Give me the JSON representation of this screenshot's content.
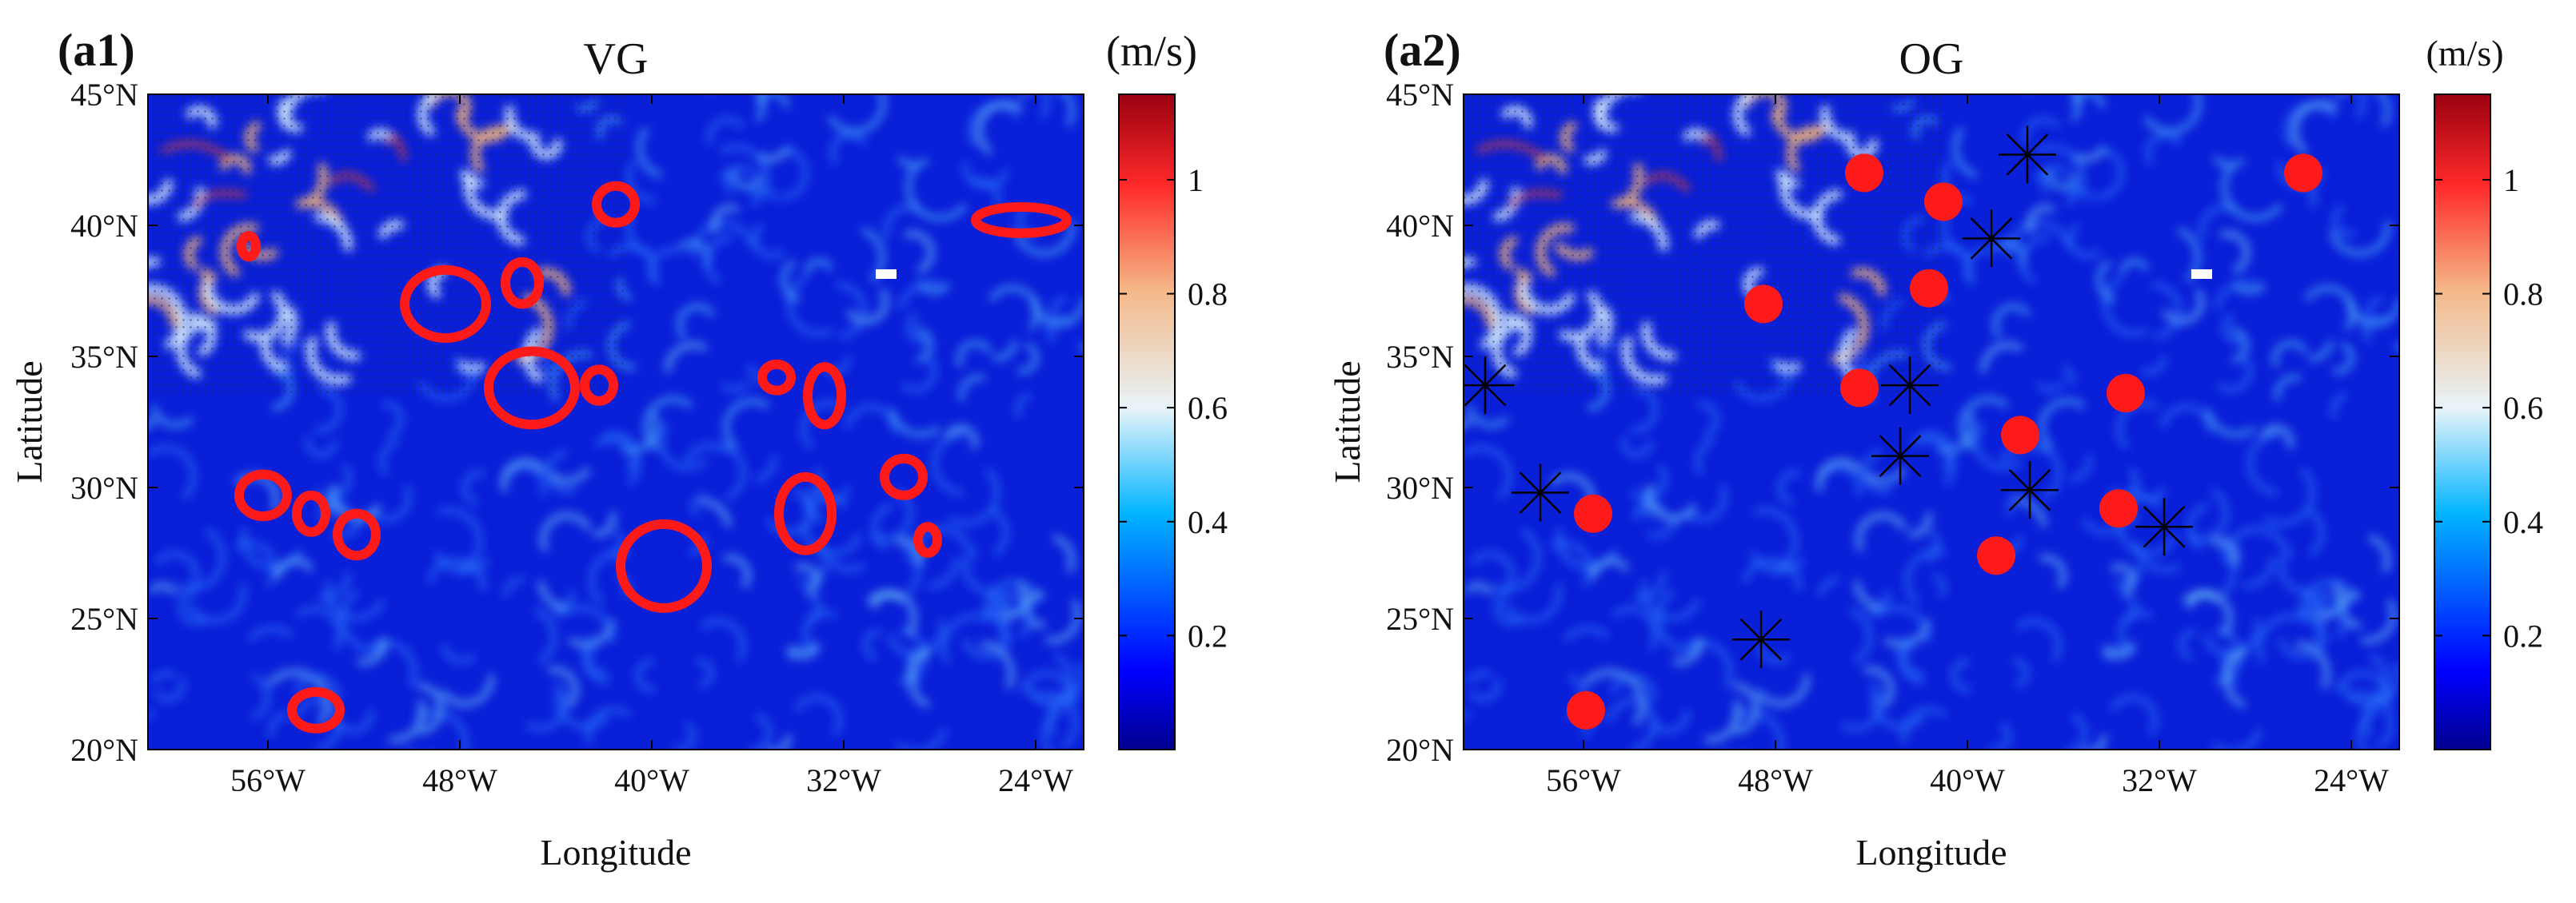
{
  "chart_data": [
    {
      "type": "heatmap",
      "panel_label": "(a1)",
      "title": "VG",
      "xlabel": "Longitude",
      "ylabel": "Latitude",
      "x_ticks": [
        "56°W",
        "48°W",
        "40°W",
        "32°W",
        "24°W"
      ],
      "x_tick_values": [
        -56,
        -48,
        -40,
        -32,
        -24
      ],
      "y_ticks": [
        "20°N",
        "25°N",
        "30°N",
        "35°N",
        "40°N",
        "45°N"
      ],
      "y_tick_values": [
        20,
        25,
        30,
        35,
        40,
        45
      ],
      "xlim": [
        -61,
        -22
      ],
      "ylim": [
        20,
        45
      ],
      "colorbar": {
        "unit": "(m/s)",
        "ticks": [
          "0.2",
          "0.4",
          "0.6",
          "0.8",
          "1"
        ],
        "tick_values": [
          0.2,
          0.4,
          0.6,
          0.8,
          1.0
        ],
        "range": [
          0.0,
          1.15
        ]
      },
      "eddy_contours": [
        {
          "lon": -56.2,
          "lat": 29.7,
          "rx": 1.0,
          "ry": 0.8
        },
        {
          "lon": -54.2,
          "lat": 29.0,
          "rx": 0.6,
          "ry": 0.7
        },
        {
          "lon": -52.3,
          "lat": 28.2,
          "rx": 0.8,
          "ry": 0.8
        },
        {
          "lon": -54.0,
          "lat": 21.5,
          "rx": 1.0,
          "ry": 0.7
        },
        {
          "lon": -48.6,
          "lat": 37.0,
          "rx": 1.7,
          "ry": 1.3
        },
        {
          "lon": -45.4,
          "lat": 37.8,
          "rx": 0.7,
          "ry": 0.8
        },
        {
          "lon": -45.0,
          "lat": 33.8,
          "rx": 1.8,
          "ry": 1.4
        },
        {
          "lon": -42.2,
          "lat": 33.9,
          "rx": 0.6,
          "ry": 0.6
        },
        {
          "lon": -41.5,
          "lat": 40.8,
          "rx": 0.8,
          "ry": 0.7
        },
        {
          "lon": -39.5,
          "lat": 27.0,
          "rx": 1.8,
          "ry": 1.6
        },
        {
          "lon": -34.8,
          "lat": 34.2,
          "rx": 0.6,
          "ry": 0.5
        },
        {
          "lon": -32.8,
          "lat": 33.5,
          "rx": 0.7,
          "ry": 1.1
        },
        {
          "lon": -33.6,
          "lat": 29.0,
          "rx": 1.1,
          "ry": 1.4
        },
        {
          "lon": -29.5,
          "lat": 30.4,
          "rx": 0.8,
          "ry": 0.7
        },
        {
          "lon": -28.5,
          "lat": 28.0,
          "rx": 0.4,
          "ry": 0.5
        },
        {
          "lon": -24.6,
          "lat": 40.2,
          "rx": 1.9,
          "ry": 0.5
        },
        {
          "lon": -56.8,
          "lat": 39.2,
          "rx": 0.3,
          "ry": 0.4
        }
      ]
    },
    {
      "type": "heatmap",
      "panel_label": "(a2)",
      "title": "OG",
      "xlabel": "Longitude",
      "ylabel": "Latitude",
      "x_ticks": [
        "56°W",
        "48°W",
        "40°W",
        "32°W",
        "24°W"
      ],
      "x_tick_values": [
        -56,
        -48,
        -40,
        -32,
        -24
      ],
      "y_ticks": [
        "20°N",
        "25°N",
        "30°N",
        "35°N",
        "40°N",
        "45°N"
      ],
      "y_tick_values": [
        20,
        25,
        30,
        35,
        40,
        45
      ],
      "xlim": [
        -61,
        -22
      ],
      "ylim": [
        20,
        45
      ],
      "colorbar": {
        "unit": "(m/s)",
        "ticks": [
          "0.2",
          "0.4",
          "0.6",
          "0.8",
          "1"
        ],
        "tick_values": [
          0.2,
          0.4,
          0.6,
          0.8,
          1.0
        ],
        "range": [
          0.0,
          1.15
        ]
      },
      "red_dots": [
        {
          "lon": -44.3,
          "lat": 42.0
        },
        {
          "lon": -41.0,
          "lat": 40.9
        },
        {
          "lon": -48.5,
          "lat": 37.0
        },
        {
          "lon": -41.6,
          "lat": 37.6
        },
        {
          "lon": -44.5,
          "lat": 33.8
        },
        {
          "lon": -37.8,
          "lat": 32.0
        },
        {
          "lon": -33.4,
          "lat": 33.6
        },
        {
          "lon": -55.6,
          "lat": 29.0
        },
        {
          "lon": -33.7,
          "lat": 29.2
        },
        {
          "lon": -38.8,
          "lat": 27.4
        },
        {
          "lon": -55.9,
          "lat": 21.5
        },
        {
          "lon": -26.0,
          "lat": 42.0
        }
      ],
      "star_markers": [
        {
          "lon": -37.5,
          "lat": 42.7
        },
        {
          "lon": -39.0,
          "lat": 39.5
        },
        {
          "lon": -60.1,
          "lat": 33.9
        },
        {
          "lon": -42.4,
          "lat": 33.9
        },
        {
          "lon": -42.8,
          "lat": 31.2
        },
        {
          "lon": -37.4,
          "lat": 29.9
        },
        {
          "lon": -31.8,
          "lat": 28.5
        },
        {
          "lon": -57.8,
          "lat": 29.8
        },
        {
          "lon": -48.6,
          "lat": 24.2
        }
      ]
    }
  ]
}
